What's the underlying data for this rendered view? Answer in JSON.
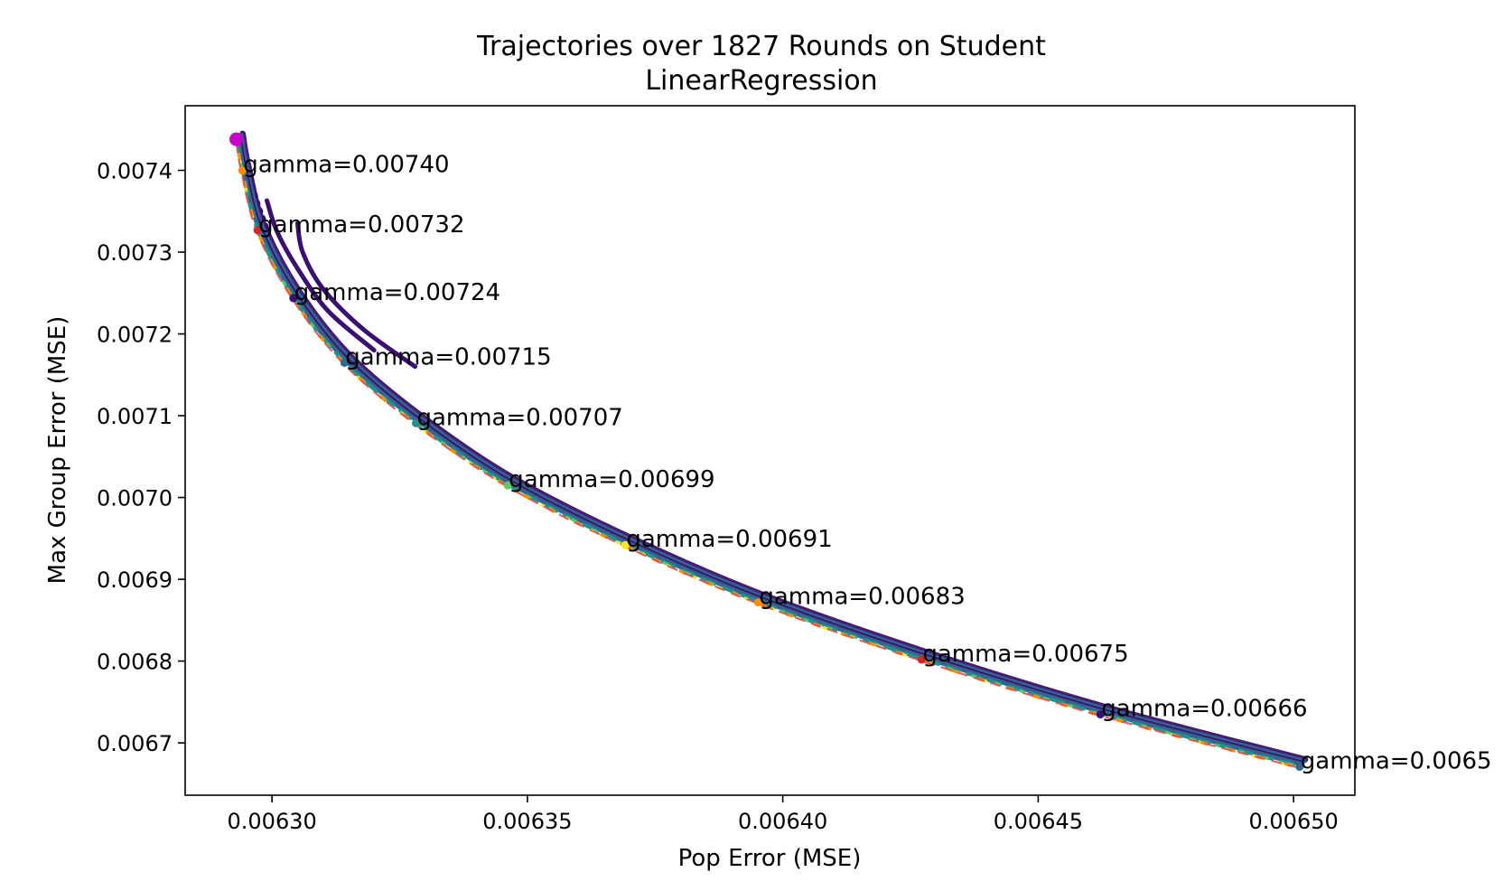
{
  "chart_data": {
    "type": "line",
    "title": [
      "Trajectories over 1827 Rounds on Student",
      "LinearRegression"
    ],
    "xlabel": "Pop Error (MSE)",
    "ylabel": "Max Group Error (MSE)",
    "xlim": [
      0.006283,
      0.006512
    ],
    "ylim": [
      0.006636,
      0.007479
    ],
    "xticks": [
      {
        "value": 0.0063,
        "label": "0.00630"
      },
      {
        "value": 0.00635,
        "label": "0.00635"
      },
      {
        "value": 0.0064,
        "label": "0.00640"
      },
      {
        "value": 0.00645,
        "label": "0.00645"
      },
      {
        "value": 0.0065,
        "label": "0.00650"
      }
    ],
    "yticks": [
      {
        "value": 0.0067,
        "label": "0.0067"
      },
      {
        "value": 0.0068,
        "label": "0.0068"
      },
      {
        "value": 0.0069,
        "label": "0.0069"
      },
      {
        "value": 0.007,
        "label": "0.0070"
      },
      {
        "value": 0.0071,
        "label": "0.0071"
      },
      {
        "value": 0.0072,
        "label": "0.0072"
      },
      {
        "value": 0.0073,
        "label": "0.0073"
      },
      {
        "value": 0.0074,
        "label": "0.0074"
      }
    ],
    "grid": false,
    "start_point": {
      "x": 0.006293,
      "y": 0.007438,
      "color": "#cc00cc"
    },
    "pareto_frontier": {
      "style": "dashed",
      "color": "#d9534f",
      "points": [
        [
          0.006293,
          0.007438
        ],
        [
          0.006294,
          0.007402
        ],
        [
          0.006297,
          0.007329
        ],
        [
          0.006304,
          0.007246
        ],
        [
          0.006314,
          0.007167
        ],
        [
          0.006328,
          0.007093
        ],
        [
          0.006346,
          0.007017
        ],
        [
          0.006369,
          0.006944
        ],
        [
          0.006395,
          0.006874
        ],
        [
          0.006427,
          0.006804
        ],
        [
          0.006462,
          0.006737
        ],
        [
          0.006501,
          0.006673
        ]
      ]
    },
    "annotations": [
      {
        "text": "gamma=0.00740",
        "x": 0.006294,
        "y": 0.007402
      },
      {
        "text": "gamma=0.00732",
        "x": 0.006297,
        "y": 0.007329
      },
      {
        "text": "gamma=0.00724",
        "x": 0.006304,
        "y": 0.007246
      },
      {
        "text": "gamma=0.00715",
        "x": 0.006314,
        "y": 0.007167
      },
      {
        "text": "gamma=0.00707",
        "x": 0.006328,
        "y": 0.007093
      },
      {
        "text": "gamma=0.00699",
        "x": 0.006346,
        "y": 0.007017
      },
      {
        "text": "gamma=0.00691",
        "x": 0.006369,
        "y": 0.006944
      },
      {
        "text": "gamma=0.00683",
        "x": 0.006395,
        "y": 0.006874
      },
      {
        "text": "gamma=0.00675",
        "x": 0.006427,
        "y": 0.006804
      },
      {
        "text": "gamma=0.00666",
        "x": 0.006462,
        "y": 0.006737
      },
      {
        "text": "gamma=0.0065",
        "x": 0.006501,
        "y": 0.006673
      }
    ],
    "trajectory_colors": [
      "#3b0f70",
      "#31688e",
      "#21918c",
      "#5ec962",
      "#fde725",
      "#f98e09",
      "#d62828"
    ],
    "side_trajectories": [
      {
        "color": "#3b0f70",
        "points": [
          [
            0.006299,
            0.007363
          ],
          [
            0.006301,
            0.007325
          ],
          [
            0.006305,
            0.00728
          ],
          [
            0.006311,
            0.007228
          ],
          [
            0.00632,
            0.00718
          ]
        ]
      },
      {
        "color": "#3b0f70",
        "points": [
          [
            0.006305,
            0.007335
          ],
          [
            0.006306,
            0.0073
          ],
          [
            0.00631,
            0.007255
          ],
          [
            0.006318,
            0.007205
          ],
          [
            0.006328,
            0.00716
          ]
        ]
      },
      {
        "color": "#3b0f70",
        "points": [
          [
            0.006296,
            0.00739
          ],
          [
            0.006297,
            0.007365
          ],
          [
            0.006299,
            0.00733
          ]
        ]
      }
    ]
  }
}
